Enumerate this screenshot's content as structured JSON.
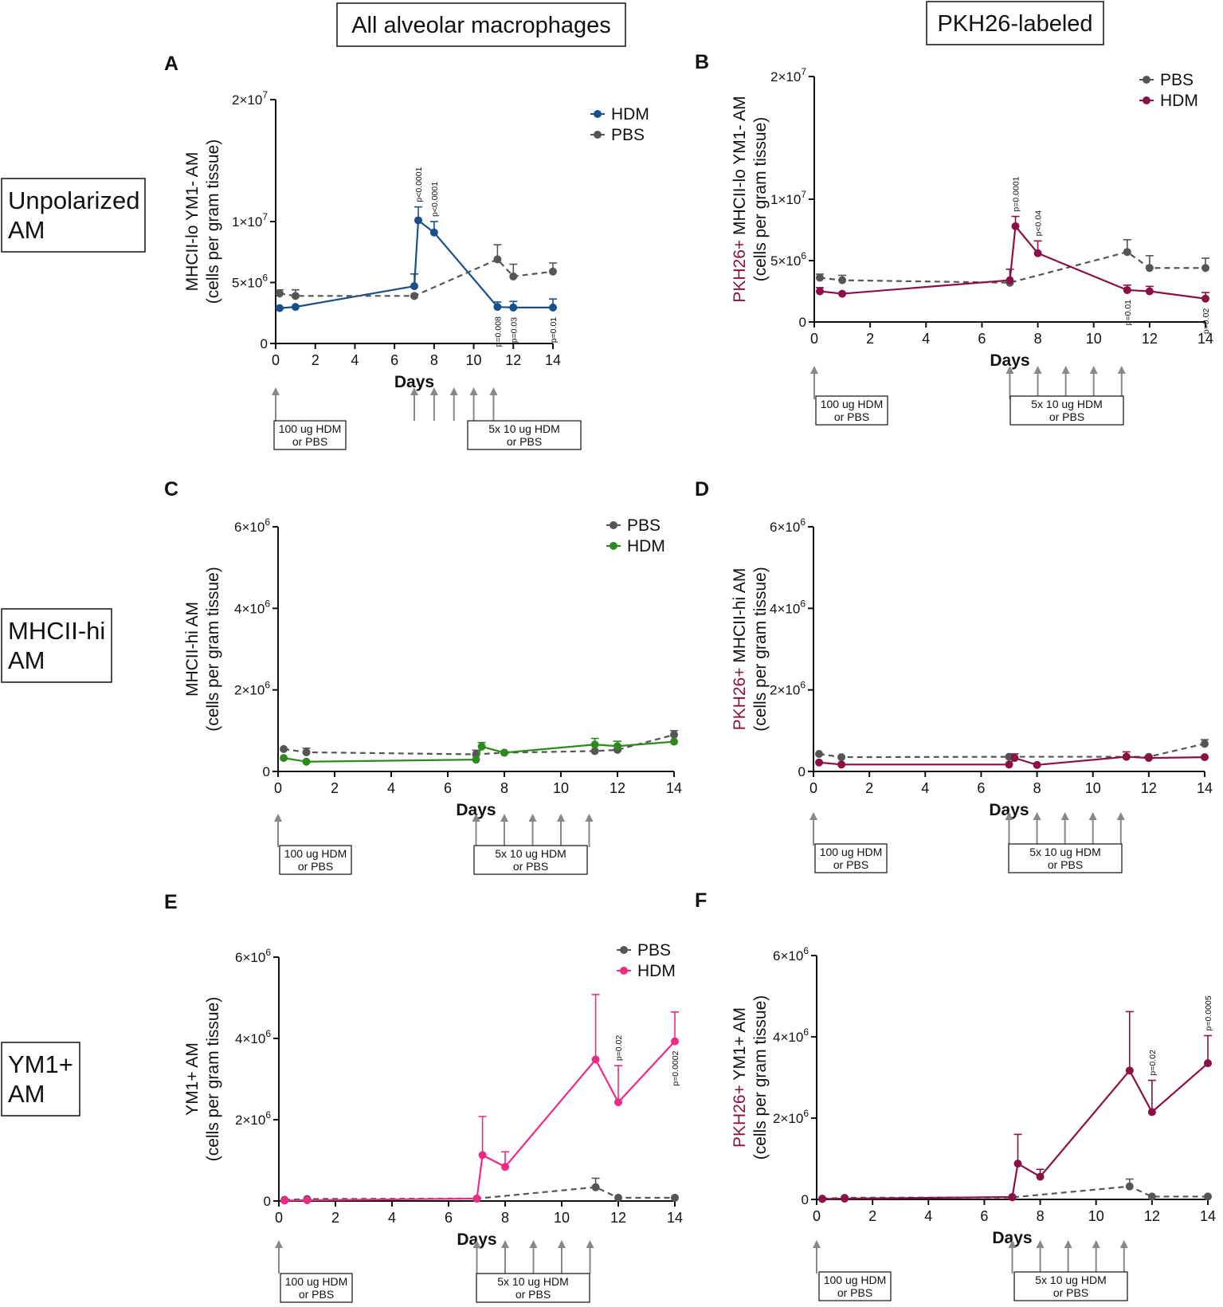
{
  "headers": {
    "col_a": "All alveolar macrophages",
    "col_b": "PKH26-labeled",
    "row_1": [
      "Unpolarized",
      "AM"
    ],
    "row_2": [
      "MHCII-hi",
      "AM"
    ],
    "row_3": [
      "YM1+",
      "AM"
    ]
  },
  "colors": {
    "pbs": "#555555",
    "hdm_a": "#1b4f8a",
    "hdm_b": "#8a1046",
    "hdm_c": "#2c8a1c",
    "hdm_e": "#ee2a85",
    "pkh_label": "#8a1046",
    "arrow": "#888888"
  },
  "timeline": {
    "box1": [
      "100 ug HDM",
      "or PBS"
    ],
    "box2": [
      "5x 10 ug HDM",
      "or PBS"
    ],
    "arrow_days": [
      0,
      7,
      8,
      9,
      10,
      11
    ]
  },
  "chart_data": [
    {
      "id": "A",
      "type": "line",
      "panel_label": "A",
      "ylabel_prefix": "",
      "ylabel": [
        "MHCII-lo YM1- AM",
        "(cells per gram tissue)"
      ],
      "xlabel": "Days",
      "xlim": [
        0,
        14
      ],
      "xticks": [
        "0",
        "2",
        "4",
        "6",
        "8",
        "10",
        "12",
        "14"
      ],
      "ylim": [
        0,
        20000000
      ],
      "yticks": [
        {
          "v": 0,
          "b": "0",
          "e": ""
        },
        {
          "v": 5000000,
          "b": "5×10",
          "e": "6"
        },
        {
          "v": 10000000,
          "b": "1×10",
          "e": "7"
        },
        {
          "v": 20000000,
          "b": "2×10",
          "e": "7"
        }
      ],
      "legend": [
        "HDM",
        "PBS"
      ],
      "series": [
        {
          "name": "HDM",
          "color": "#1b4f8a",
          "dashed": false,
          "x": [
            0.2,
            1,
            7,
            7.2,
            8,
            11.2,
            12,
            14
          ],
          "y": [
            2900000,
            3000000,
            4700000,
            10100000,
            9100000,
            3000000,
            2950000,
            2950000
          ],
          "err": [
            0,
            0,
            1000000,
            1100000,
            900000,
            400000,
            500000,
            700000
          ]
        },
        {
          "name": "PBS",
          "color": "#555555",
          "dashed": true,
          "x": [
            0.2,
            1,
            7,
            11.2,
            12,
            14
          ],
          "y": [
            4100000,
            3900000,
            3900000,
            6900000,
            5500000,
            5900000
          ],
          "err": [
            300000,
            500000,
            0,
            1200000,
            1000000,
            700000
          ]
        }
      ],
      "pvalues": [
        {
          "x": 7.2,
          "text": "p<0.0001",
          "pos": "above"
        },
        {
          "x": 8,
          "text": "p<0.0001",
          "pos": "above"
        },
        {
          "x": 11.2,
          "text": "p=0.008",
          "pos": "below"
        },
        {
          "x": 12,
          "text": "p=0.03",
          "pos": "below"
        },
        {
          "x": 14,
          "text": "p=0.01",
          "pos": "below"
        }
      ]
    },
    {
      "id": "B",
      "type": "line",
      "panel_label": "B",
      "ylabel_prefix": "PKH26+",
      "ylabel": [
        "MHCII-lo YM1- AM",
        "(cells per gram tissue)"
      ],
      "xlabel": "Days",
      "xlim": [
        0,
        14
      ],
      "xticks": [
        "0",
        "2",
        "4",
        "6",
        "8",
        "10",
        "12",
        "14"
      ],
      "ylim": [
        0,
        20000000
      ],
      "yticks": [
        {
          "v": 0,
          "b": "0",
          "e": ""
        },
        {
          "v": 5000000,
          "b": "5×10",
          "e": "6"
        },
        {
          "v": 10000000,
          "b": "1×10",
          "e": "7"
        },
        {
          "v": 20000000,
          "b": "2×10",
          "e": "7"
        }
      ],
      "legend": [
        "PBS",
        "HDM"
      ],
      "series": [
        {
          "name": "PBS",
          "color": "#555555",
          "dashed": true,
          "x": [
            0.2,
            1,
            7,
            11.2,
            12,
            14
          ],
          "y": [
            3600000,
            3400000,
            3200000,
            5700000,
            4400000,
            4400000
          ],
          "err": [
            300000,
            400000,
            0,
            1000000,
            1000000,
            800000
          ]
        },
        {
          "name": "HDM",
          "color": "#8a1046",
          "dashed": false,
          "x": [
            0.2,
            1,
            7,
            7.2,
            8,
            11.2,
            12,
            14
          ],
          "y": [
            2500000,
            2300000,
            3400000,
            7800000,
            5600000,
            2600000,
            2500000,
            1900000
          ],
          "err": [
            300000,
            0,
            900000,
            800000,
            1000000,
            400000,
            400000,
            500000
          ]
        }
      ],
      "pvalues": [
        {
          "x": 7.2,
          "text": "p=0.0001",
          "pos": "above"
        },
        {
          "x": 8,
          "text": "p<0.04",
          "pos": "above"
        },
        {
          "x": 11.2,
          "text": "p=0.01",
          "pos": "below"
        },
        {
          "x": 14,
          "text": "p=0.02",
          "pos": "below"
        }
      ]
    },
    {
      "id": "C",
      "type": "line",
      "panel_label": "C",
      "ylabel_prefix": "",
      "ylabel": [
        "MHCII-hi AM",
        "(cells per gram tissue)"
      ],
      "xlabel": "Days",
      "xlim": [
        0,
        14
      ],
      "xticks": [
        "0",
        "2",
        "4",
        "6",
        "8",
        "10",
        "12",
        "14"
      ],
      "ylim": [
        0,
        6000000
      ],
      "yticks": [
        {
          "v": 0,
          "b": "0",
          "e": ""
        },
        {
          "v": 2000000,
          "b": "2×10",
          "e": "6"
        },
        {
          "v": 4000000,
          "b": "4×10",
          "e": "6"
        },
        {
          "v": 6000000,
          "b": "6×10",
          "e": "6"
        }
      ],
      "legend": [
        "PBS",
        "HDM"
      ],
      "series": [
        {
          "name": "PBS",
          "color": "#555555",
          "dashed": true,
          "x": [
            0.2,
            1,
            7,
            8,
            11.2,
            12,
            14
          ],
          "y": [
            550000,
            470000,
            420000,
            460000,
            500000,
            530000,
            900000
          ],
          "err": [
            0,
            100000,
            100000,
            0,
            0,
            100000,
            100000
          ]
        },
        {
          "name": "HDM",
          "color": "#2c8a1c",
          "dashed": false,
          "x": [
            0.2,
            1,
            7,
            7.2,
            8,
            11.2,
            12,
            14
          ],
          "y": [
            330000,
            240000,
            290000,
            610000,
            460000,
            660000,
            620000,
            730000
          ],
          "err": [
            0,
            0,
            0,
            100000,
            0,
            150000,
            120000,
            0
          ]
        }
      ],
      "pvalues": []
    },
    {
      "id": "D",
      "type": "line",
      "panel_label": "D",
      "ylabel_prefix": "PKH26+",
      "ylabel": [
        "MHCII-hi AM",
        "(cells per gram tissue)"
      ],
      "xlabel": "Days",
      "xlim": [
        0,
        14
      ],
      "xticks": [
        "0",
        "2",
        "4",
        "6",
        "8",
        "10",
        "12",
        "14"
      ],
      "ylim": [
        0,
        6000000
      ],
      "yticks": [
        {
          "v": 0,
          "b": "0",
          "e": ""
        },
        {
          "v": 2000000,
          "b": "2×10",
          "e": "6"
        },
        {
          "v": 4000000,
          "b": "4×10",
          "e": "6"
        },
        {
          "v": 6000000,
          "b": "6×10",
          "e": "6"
        }
      ],
      "legend": [],
      "series": [
        {
          "name": "PBS",
          "color": "#555555",
          "dashed": true,
          "x": [
            0.2,
            1,
            7,
            11.2,
            12,
            14
          ],
          "y": [
            430000,
            350000,
            360000,
            360000,
            360000,
            680000
          ],
          "err": [
            0,
            0,
            0,
            0,
            0,
            100000
          ]
        },
        {
          "name": "HDM",
          "color": "#8a1046",
          "dashed": false,
          "x": [
            0.2,
            1,
            7,
            7.2,
            8,
            11.2,
            12,
            14
          ],
          "y": [
            220000,
            170000,
            170000,
            330000,
            160000,
            360000,
            330000,
            350000
          ],
          "err": [
            0,
            0,
            0,
            100000,
            0,
            120000,
            0,
            0
          ]
        }
      ],
      "pvalues": []
    },
    {
      "id": "E",
      "type": "line",
      "panel_label": "E",
      "ylabel_prefix": "",
      "ylabel": [
        "YM1+ AM",
        "(cells per gram tissue)"
      ],
      "xlabel": "Days",
      "xlim": [
        0,
        14
      ],
      "xticks": [
        "0",
        "2",
        "4",
        "6",
        "8",
        "10",
        "12",
        "14"
      ],
      "ylim": [
        0,
        6000000
      ],
      "yticks": [
        {
          "v": 0,
          "b": "0",
          "e": ""
        },
        {
          "v": 2000000,
          "b": "2×10",
          "e": "6"
        },
        {
          "v": 4000000,
          "b": "4×10",
          "e": "6"
        },
        {
          "v": 6000000,
          "b": "6×10",
          "e": "6"
        }
      ],
      "legend": [
        "PBS",
        "HDM"
      ],
      "series": [
        {
          "name": "PBS",
          "color": "#555555",
          "dashed": true,
          "x": [
            0.2,
            1,
            7,
            11.2,
            12,
            14
          ],
          "y": [
            30000,
            50000,
            60000,
            340000,
            80000,
            80000
          ],
          "err": [
            0,
            0,
            0,
            220000,
            0,
            0
          ]
        },
        {
          "name": "HDM",
          "color": "#ee2a85",
          "dashed": false,
          "x": [
            0.2,
            1,
            7,
            7.2,
            8,
            11.2,
            12,
            14
          ],
          "y": [
            10000,
            20000,
            60000,
            1130000,
            840000,
            3480000,
            2430000,
            3930000
          ],
          "err": [
            0,
            0,
            0,
            950000,
            370000,
            1600000,
            900000,
            720000
          ]
        }
      ],
      "pvalues": [
        {
          "x": 12,
          "text": "p=0.02",
          "pos": "above"
        },
        {
          "x": 14,
          "text": "p=0.0002",
          "pos": "below"
        }
      ]
    },
    {
      "id": "F",
      "type": "line",
      "panel_label": "F",
      "ylabel_prefix": "PKH26+",
      "ylabel": [
        "YM1+ AM",
        "(cells per gram tissue)"
      ],
      "xlabel": "Days",
      "xlim": [
        0,
        14
      ],
      "xticks": [
        "0",
        "2",
        "4",
        "6",
        "8",
        "10",
        "12",
        "14"
      ],
      "ylim": [
        0,
        6000000
      ],
      "yticks": [
        {
          "v": 0,
          "b": "0",
          "e": ""
        },
        {
          "v": 2000000,
          "b": "2×10",
          "e": "6"
        },
        {
          "v": 4000000,
          "b": "4×10",
          "e": "6"
        },
        {
          "v": 6000000,
          "b": "6×10",
          "e": "6"
        }
      ],
      "legend": [],
      "series": [
        {
          "name": "PBS",
          "color": "#555555",
          "dashed": true,
          "x": [
            0.2,
            1,
            7,
            11.2,
            12,
            14
          ],
          "y": [
            20000,
            40000,
            50000,
            320000,
            70000,
            70000
          ],
          "err": [
            0,
            0,
            0,
            180000,
            0,
            0
          ]
        },
        {
          "name": "HDM",
          "color": "#8a1046",
          "dashed": false,
          "x": [
            0.2,
            1,
            7,
            7.2,
            8,
            11.2,
            12,
            14
          ],
          "y": [
            10000,
            20000,
            60000,
            880000,
            560000,
            3170000,
            2150000,
            3350000
          ],
          "err": [
            0,
            0,
            0,
            720000,
            180000,
            1450000,
            780000,
            680000
          ]
        }
      ],
      "pvalues": [
        {
          "x": 12,
          "text": "p=0.02",
          "pos": "above"
        },
        {
          "x": 14,
          "text": "p=0.0005",
          "pos": "above"
        }
      ]
    }
  ]
}
